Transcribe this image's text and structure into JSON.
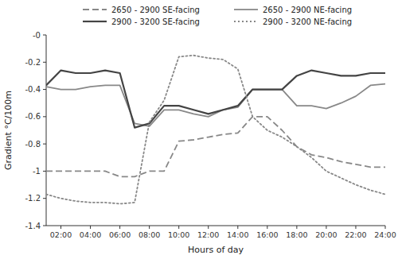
{
  "chart_data": {
    "type": "line",
    "x_label": "Hours of day",
    "y_label": "Gradient °C/100m",
    "x": [
      1,
      2,
      3,
      4,
      5,
      6,
      7,
      8,
      9,
      10,
      11,
      12,
      13,
      14,
      15,
      16,
      17,
      18,
      19,
      20,
      21,
      22,
      23,
      24
    ],
    "series": [
      {
        "name": "2650 - 2900 SE-facing",
        "color": "#888888",
        "line_style": "dashed",
        "values": [
          -1.0,
          -1.0,
          -1.0,
          -1.0,
          -1.0,
          -1.04,
          -1.04,
          -1.0,
          -1.0,
          -0.78,
          -0.77,
          -0.75,
          -0.73,
          -0.72,
          -0.6,
          -0.6,
          -0.7,
          -0.82,
          -0.88,
          -0.9,
          -0.93,
          -0.95,
          -0.97,
          -0.97
        ]
      },
      {
        "name": "2650 - 2900 NE-facing",
        "color": "#888888",
        "line_style": "solid",
        "values": [
          -0.38,
          -0.4,
          -0.4,
          -0.38,
          -0.37,
          -0.37,
          -0.65,
          -0.67,
          -0.55,
          -0.55,
          -0.58,
          -0.6,
          -0.55,
          -0.53,
          -0.4,
          -0.4,
          -0.4,
          -0.52,
          -0.52,
          -0.54,
          -0.5,
          -0.45,
          -0.37,
          -0.36
        ]
      },
      {
        "name": "2900 - 3200 SE-facing",
        "color": "#444444",
        "line_style": "solid",
        "values": [
          -0.37,
          -0.26,
          -0.28,
          -0.28,
          -0.26,
          -0.28,
          -0.68,
          -0.65,
          -0.52,
          -0.52,
          -0.55,
          -0.58,
          -0.55,
          -0.52,
          -0.4,
          -0.4,
          -0.4,
          -0.3,
          -0.26,
          -0.28,
          -0.3,
          -0.3,
          -0.28,
          -0.28
        ]
      },
      {
        "name": "2900 - 3200 NE-facing",
        "color": "#888888",
        "line_style": "dotted",
        "values": [
          -1.17,
          -1.2,
          -1.22,
          -1.23,
          -1.23,
          -1.24,
          -1.23,
          -0.64,
          -0.48,
          -0.16,
          -0.15,
          -0.17,
          -0.18,
          -0.25,
          -0.6,
          -0.7,
          -0.75,
          -0.82,
          -0.9,
          -1.0,
          -1.05,
          -1.1,
          -1.14,
          -1.17
        ]
      }
    ],
    "xlim": [
      1,
      24
    ],
    "xticks": [
      {
        "value": 2,
        "label": "02:00"
      },
      {
        "value": 4,
        "label": "04:00"
      },
      {
        "value": 6,
        "label": "06:00"
      },
      {
        "value": 8,
        "label": "08:00"
      },
      {
        "value": 10,
        "label": "10:00"
      },
      {
        "value": 12,
        "label": "12:00"
      },
      {
        "value": 14,
        "label": "14:00"
      },
      {
        "value": 16,
        "label": "16:00"
      },
      {
        "value": 18,
        "label": "18:00"
      },
      {
        "value": 20,
        "label": "20:00"
      },
      {
        "value": 22,
        "label": "22:00"
      },
      {
        "value": 24,
        "label": "24:00"
      }
    ],
    "ylim": [
      -1.4,
      0
    ],
    "yticks": [
      -1.4,
      -1.2,
      -1,
      -0.8,
      -0.6,
      -0.4,
      -0.2,
      {
        "value": 0,
        "label": "-0"
      }
    ],
    "legend": "upper-right",
    "grid": false
  }
}
